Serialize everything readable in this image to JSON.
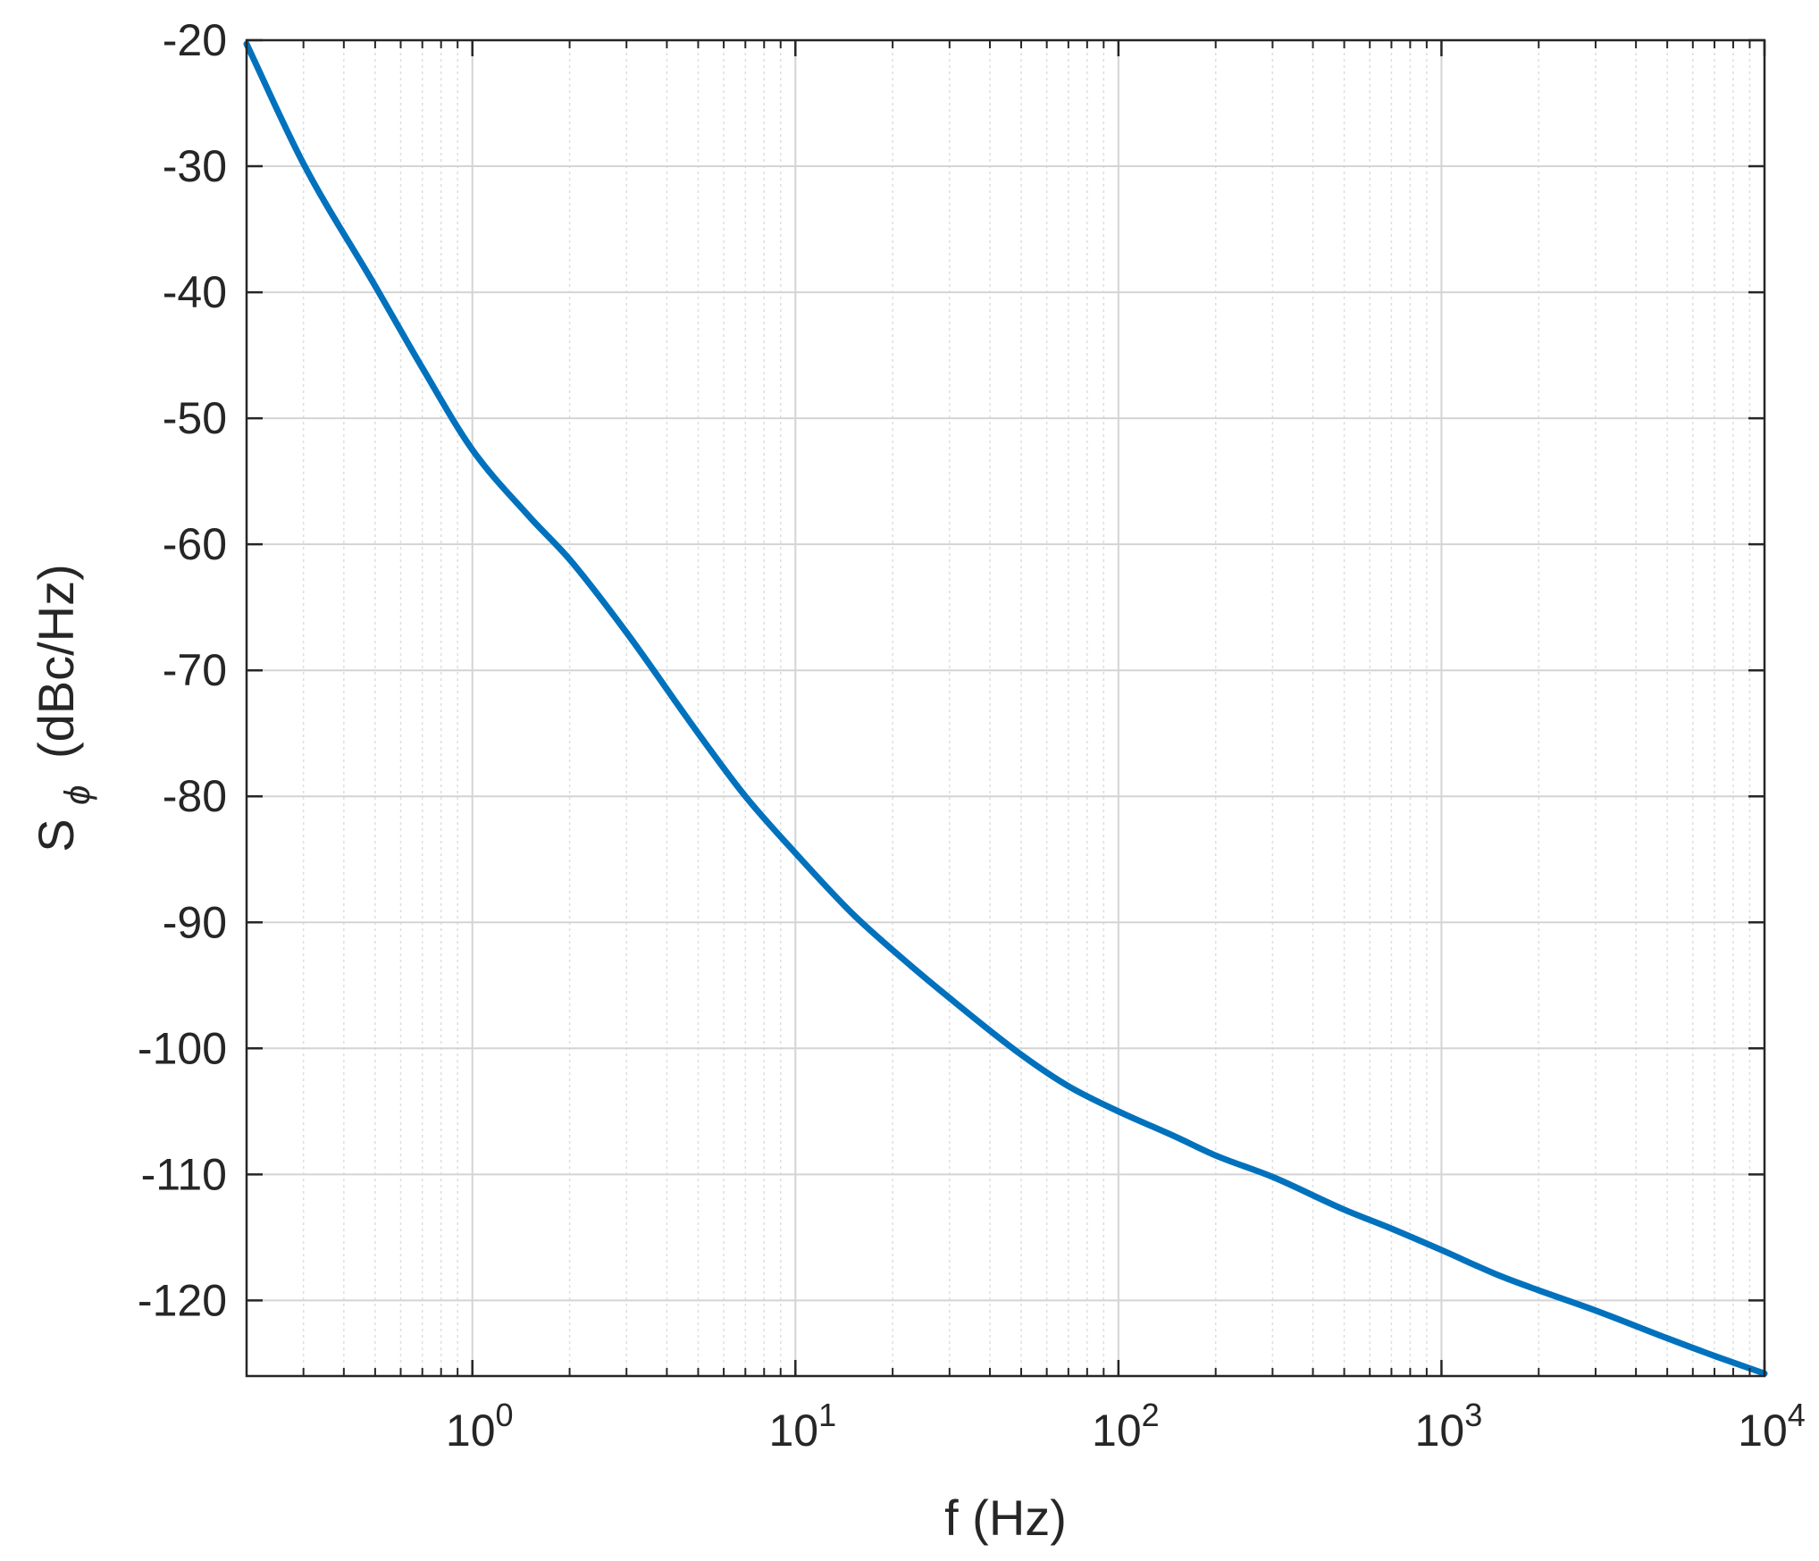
{
  "chart_data": {
    "type": "line",
    "title": "",
    "xlabel": "f (Hz)",
    "ylabel": {
      "main": "S",
      "subscript": "ϕ",
      "unit": "(dBc/Hz)"
    },
    "x_scale": "log",
    "xlim": [
      0.2,
      10000
    ],
    "ylim": [
      -126,
      -20
    ],
    "grid": true,
    "minor_grid_x": true,
    "line_color": "#0072BD",
    "x_ticks": [
      {
        "value": 1,
        "base": "10",
        "exponent": "0"
      },
      {
        "value": 10,
        "base": "10",
        "exponent": "1"
      },
      {
        "value": 100,
        "base": "10",
        "exponent": "2"
      },
      {
        "value": 1000,
        "base": "10",
        "exponent": "3"
      },
      {
        "value": 10000,
        "base": "10",
        "exponent": "4"
      }
    ],
    "y_ticks": [
      {
        "value": -20,
        "label": "-20"
      },
      {
        "value": -30,
        "label": "-30"
      },
      {
        "value": -40,
        "label": "-40"
      },
      {
        "value": -50,
        "label": "-50"
      },
      {
        "value": -60,
        "label": "-60"
      },
      {
        "value": -70,
        "label": "-70"
      },
      {
        "value": -80,
        "label": "-80"
      },
      {
        "value": -90,
        "label": "-90"
      },
      {
        "value": -100,
        "label": "-100"
      },
      {
        "value": -110,
        "label": "-110"
      },
      {
        "value": -120,
        "label": "-120"
      }
    ],
    "series": [
      {
        "x": [
          0.2,
          0.3,
          0.5,
          0.7,
          1,
          1.5,
          2,
          3,
          5,
          7,
          10,
          15,
          20,
          30,
          50,
          70,
          100,
          150,
          200,
          300,
          500,
          700,
          1000,
          1500,
          2000,
          3000,
          5000,
          7000,
          10000
        ],
        "y": [
          -20.3,
          -29.8,
          -39.5,
          -46.0,
          -52.5,
          -57.8,
          -61.2,
          -67.0,
          -75.0,
          -80.0,
          -84.5,
          -89.3,
          -92.2,
          -96.0,
          -100.5,
          -103.0,
          -105.0,
          -107.0,
          -108.5,
          -110.2,
          -112.8,
          -114.3,
          -116.0,
          -118.0,
          -119.2,
          -120.8,
          -123.0,
          -124.4,
          -125.8
        ]
      }
    ]
  }
}
